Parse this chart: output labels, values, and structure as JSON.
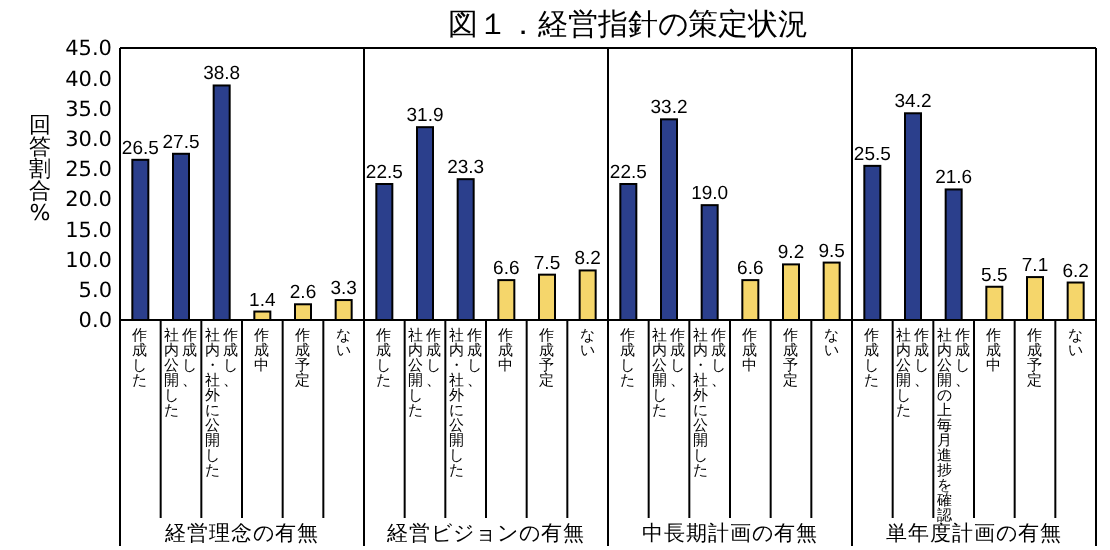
{
  "chart_data": {
    "type": "bar",
    "title": "図１．経営指針の策定状況",
    "ylabel": "回答割合%",
    "categories": [
      "作成した",
      "作成し、社内公開した",
      "作成し、社内・社外に公開した",
      "作成中",
      "作成予定",
      "ない",
      "作成した",
      "作成し、社内公開した",
      "作成し、社内・社外に公開した",
      "作成中",
      "作成予定",
      "ない",
      "作成した",
      "作成し、社内公開した",
      "作成し、社内・社外に公開した",
      "作成中",
      "作成予定",
      "ない",
      "作成した",
      "作成し、社内公開した",
      "作成し、社内公開の上毎月進捗を確認",
      "作成中",
      "作成予定",
      "ない"
    ],
    "values": [
      26.5,
      27.5,
      38.8,
      1.4,
      2.6,
      3.3,
      22.5,
      31.9,
      23.3,
      6.6,
      7.5,
      8.2,
      22.5,
      33.2,
      19.0,
      6.6,
      9.2,
      9.5,
      25.5,
      34.2,
      21.6,
      5.5,
      7.1,
      6.2
    ],
    "value_labels": [
      "26.5",
      "27.5",
      "38.8",
      "1.4",
      "2.6",
      "3.3",
      "22.5",
      "31.9",
      "23.3",
      "6.6",
      "7.5",
      "8.2",
      "22.5",
      "33.2",
      "19.0",
      "6.6",
      "9.2",
      "9.5",
      "25.5",
      "34.2",
      "21.6",
      "5.5",
      "7.1",
      "6.2"
    ],
    "colors": [
      "#2b3f8c",
      "#2b3f8c",
      "#2b3f8c",
      "#f5d66b",
      "#f5d66b",
      "#f5d66b",
      "#2b3f8c",
      "#2b3f8c",
      "#2b3f8c",
      "#f5d66b",
      "#f5d66b",
      "#f5d66b",
      "#2b3f8c",
      "#2b3f8c",
      "#2b3f8c",
      "#f5d66b",
      "#f5d66b",
      "#f5d66b",
      "#2b3f8c",
      "#2b3f8c",
      "#2b3f8c",
      "#f5d66b",
      "#f5d66b",
      "#f5d66b"
    ],
    "ylim": [
      0,
      45
    ],
    "yticks": [
      {
        "value": 0,
        "label": "0.0"
      },
      {
        "value": 5,
        "label": "5.0"
      },
      {
        "value": 10,
        "label": "10.0"
      },
      {
        "value": 15,
        "label": "15.0"
      },
      {
        "value": 20,
        "label": "20.0"
      },
      {
        "value": 25,
        "label": "25.0"
      },
      {
        "value": 30,
        "label": "30.0"
      },
      {
        "value": 35,
        "label": "35.0"
      },
      {
        "value": 40,
        "label": "40.0"
      },
      {
        "value": 45,
        "label": "45.0"
      }
    ],
    "annotations": [
      "経営理念の有無",
      "経営ビジョンの有無",
      "中長期計画の有無",
      "単年度計画の有無"
    ],
    "data_labels": false
  }
}
